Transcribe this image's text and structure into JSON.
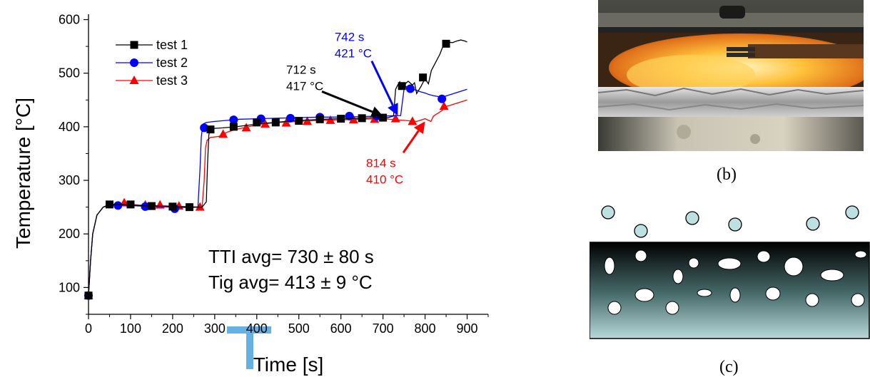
{
  "chart_data": {
    "type": "line",
    "xlabel": "Time [s]",
    "ylabel": "Temperature [°C]",
    "xlim": [
      0,
      950
    ],
    "ylim": [
      50,
      610
    ],
    "xticks": [
      0,
      100,
      200,
      300,
      400,
      500,
      600,
      700,
      800,
      900
    ],
    "yticks": [
      100,
      200,
      300,
      400,
      500,
      600
    ],
    "xtick_labels": [
      "0",
      "100",
      "200",
      "300",
      "400",
      "500",
      "600",
      "700",
      "800",
      "900"
    ],
    "ytick_labels": [
      "100",
      "200",
      "300",
      "400",
      "500",
      "600"
    ],
    "grid": false,
    "legend_position": "top-left",
    "series": [
      {
        "name": "test 1",
        "color": "#000000",
        "marker": "square",
        "x": [
          0,
          5,
          10,
          20,
          35,
          50,
          80,
          120,
          160,
          200,
          240,
          270,
          280,
          283,
          286,
          290,
          300,
          320,
          350,
          380,
          410,
          440,
          470,
          500,
          530,
          560,
          590,
          620,
          650,
          680,
          712,
          725,
          730,
          735,
          740,
          745,
          760,
          770,
          775,
          780,
          790,
          800,
          808,
          815,
          825,
          835,
          845,
          855,
          865,
          875,
          885,
          895,
          900
        ],
        "y": [
          85,
          150,
          200,
          235,
          250,
          255,
          255,
          253,
          252,
          251,
          250,
          250,
          260,
          330,
          385,
          395,
          397,
          398,
          400,
          403,
          406,
          408,
          410,
          412,
          413,
          414,
          415,
          415,
          416,
          417,
          417,
          420,
          470,
          478,
          484,
          475,
          485,
          478,
          482,
          462,
          475,
          490,
          480,
          505,
          520,
          535,
          555,
          558,
          557,
          560,
          562,
          560,
          558
        ],
        "markers_x": [
          0,
          50,
          100,
          150,
          200,
          240,
          290,
          345,
          400,
          445,
          500,
          550,
          600,
          650,
          700,
          745,
          795,
          850
        ],
        "markers_y": [
          85,
          255,
          255,
          252,
          251,
          250,
          395,
          400,
          408,
          408,
          411,
          414,
          415,
          416,
          417,
          476,
          492,
          555
        ]
      },
      {
        "name": "test 2",
        "color": "#0000ff",
        "marker": "circle",
        "x": [
          0,
          5,
          10,
          20,
          35,
          50,
          80,
          120,
          160,
          200,
          240,
          260,
          265,
          268,
          272,
          280,
          300,
          330,
          360,
          400,
          450,
          500,
          550,
          600,
          650,
          700,
          742,
          750,
          755,
          760,
          770,
          780,
          790,
          800,
          810,
          820,
          840,
          860,
          880,
          900
        ],
        "y": [
          85,
          150,
          200,
          235,
          250,
          253,
          254,
          252,
          251,
          250,
          249,
          250,
          320,
          380,
          405,
          408,
          410,
          412,
          414,
          415,
          416,
          417,
          418,
          418,
          419,
          420,
          421,
          470,
          475,
          472,
          470,
          468,
          465,
          463,
          460,
          458,
          455,
          460,
          465,
          470
        ],
        "markers_x": [
          0,
          70,
          135,
          205,
          275,
          345,
          410,
          480,
          550,
          620,
          685,
          765,
          840
        ],
        "markers_y": [
          85,
          253,
          251,
          247,
          398,
          413,
          415,
          416,
          418,
          420,
          420,
          471,
          452
        ]
      },
      {
        "name": "test 3",
        "color": "#ff0000",
        "marker": "triangle",
        "x": [
          0,
          5,
          10,
          20,
          35,
          50,
          80,
          120,
          160,
          200,
          240,
          270,
          275,
          278,
          282,
          290,
          310,
          330,
          350,
          380,
          410,
          450,
          500,
          550,
          600,
          650,
          700,
          750,
          780,
          800,
          814,
          820,
          830,
          840,
          850,
          860,
          880,
          900
        ],
        "y": [
          85,
          150,
          200,
          235,
          250,
          255,
          256,
          254,
          253,
          252,
          251,
          250,
          300,
          360,
          375,
          380,
          382,
          390,
          395,
          400,
          405,
          408,
          410,
          412,
          413,
          414,
          415,
          412,
          410,
          415,
          410,
          420,
          425,
          430,
          438,
          440,
          445,
          450
        ],
        "markers_x": [
          0,
          85,
          135,
          170,
          215,
          265,
          320,
          375,
          420,
          470,
          520,
          575,
          630,
          680,
          730,
          770,
          845
        ],
        "markers_y": [
          85,
          258,
          254,
          254,
          252,
          250,
          386,
          398,
          405,
          407,
          410,
          412,
          413,
          414,
          415,
          410,
          438
        ]
      }
    ],
    "annotations": [
      {
        "id": "a742",
        "text_lines": [
          "742 s",
          "421 °C"
        ],
        "color": "#0000ff",
        "label_xy": [
          585,
          560
        ],
        "arrow_to": [
          735,
          421
        ]
      },
      {
        "id": "a712",
        "text_lines": [
          "712 s",
          "417 °C"
        ],
        "color": "#000000",
        "label_xy": [
          470,
          499
        ],
        "arrow_to": [
          700,
          420
        ]
      },
      {
        "id": "a814",
        "text_lines": [
          "814 s",
          "410 °C"
        ],
        "color": "#ff0000",
        "label_xy": [
          660,
          325
        ],
        "arrow_to": [
          800,
          410
        ]
      }
    ],
    "summary_text": [
      "TTI avg= 730 ± 80 s",
      "Tig avg= 413 ± 9 °C"
    ]
  },
  "panels": {
    "photo_caption": "(b)",
    "schematic_caption": "(c)"
  },
  "colors": {
    "watermark": "#4aa3df",
    "bubble_fill": "#bfe0e0",
    "schematic_top": "#000000",
    "schematic_bottom": "#b8d8d8"
  }
}
